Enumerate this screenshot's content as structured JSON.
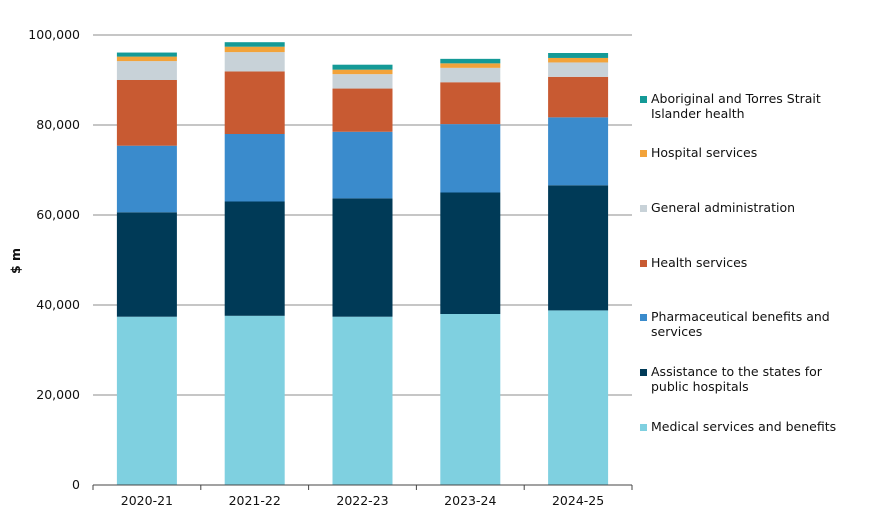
{
  "chart_data": {
    "type": "bar",
    "stacked": true,
    "title": "",
    "xlabel": "",
    "ylabel": "$ m",
    "ylim": [
      0,
      100000
    ],
    "yticks": [
      0,
      20000,
      40000,
      60000,
      80000,
      100000
    ],
    "ytick_labels": [
      "0",
      "20,000",
      "40,000",
      "60,000",
      "80,000",
      "100,000"
    ],
    "grid": true,
    "legend_position": "right",
    "categories": [
      "2020-21",
      "2021-22",
      "2022-23",
      "2023-24",
      "2024-25"
    ],
    "series": [
      {
        "name": "Medical services and benefits",
        "color": "#7fd0e0",
        "values": [
          37400,
          37600,
          37400,
          38000,
          38800
        ]
      },
      {
        "name": "Assistance to the states for public hospitals",
        "color": "#003a57",
        "values": [
          23200,
          25400,
          26300,
          27000,
          27800
        ]
      },
      {
        "name": "Pharmaceutical benefits and services",
        "color": "#3a8bcc",
        "values": [
          14800,
          15000,
          14800,
          15200,
          15100
        ]
      },
      {
        "name": "Health services",
        "color": "#c85a32",
        "values": [
          14600,
          13900,
          9600,
          9300,
          9000
        ]
      },
      {
        "name": "General administration",
        "color": "#c8d2d8",
        "values": [
          4200,
          4300,
          3200,
          3200,
          3200
        ]
      },
      {
        "name": "Hospital services",
        "color": "#f2a33a",
        "values": [
          1000,
          1200,
          1000,
          1000,
          1000
        ]
      },
      {
        "name": "Aboriginal and Torres Strait Islander health",
        "color": "#149a97",
        "values": [
          900,
          1000,
          1100,
          1000,
          1100
        ]
      }
    ]
  }
}
